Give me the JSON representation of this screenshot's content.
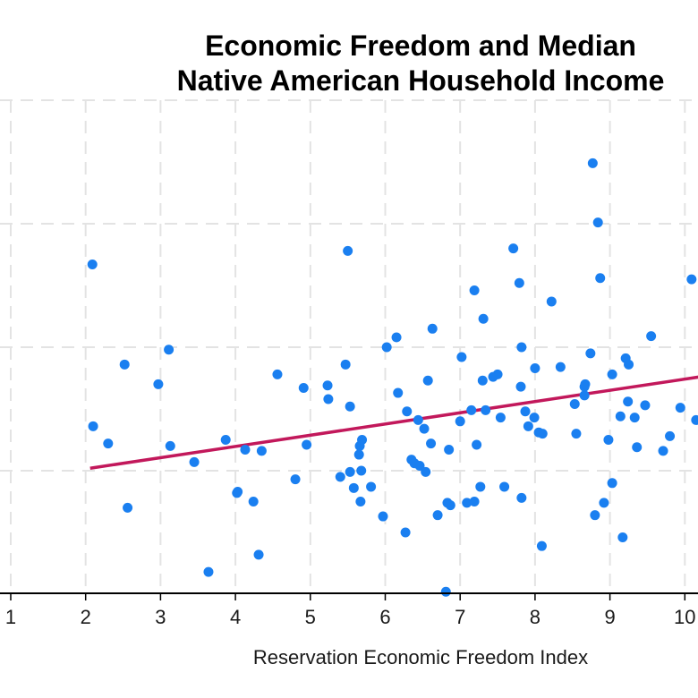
{
  "chart_data": {
    "type": "scatter",
    "title": [
      "Economic Freedom and Median",
      "Native American Household Income"
    ],
    "xlabel": "Reservation Economic Freedom Index",
    "ylabel": "",
    "xlim": [
      1,
      10.2
    ],
    "x_ticks": [
      1,
      2,
      3,
      4,
      5,
      6,
      7,
      8,
      9,
      10
    ],
    "y_note": "y-axis tick labels are cropped out of view; y values are expressed in gridline units (0 = lowest visible horizontal gridline, spacing 1)",
    "ylim": [
      -1.0,
      3.1
    ],
    "y_gridlines": [
      0,
      1,
      2,
      3
    ],
    "grid": true,
    "legend": "none",
    "colors": {
      "points": "#1a7ff0",
      "fit_line": "#c2185b",
      "grid": "#e3e3e3",
      "axis": "#000000"
    },
    "points": [
      [
        2.09,
        1.67
      ],
      [
        2.1,
        0.36
      ],
      [
        2.52,
        0.86
      ],
      [
        2.56,
        -0.3
      ],
      [
        2.3,
        0.22
      ],
      [
        2.97,
        0.7
      ],
      [
        3.11,
        0.98
      ],
      [
        3.13,
        0.2
      ],
      [
        3.45,
        0.07
      ],
      [
        3.64,
        -0.82
      ],
      [
        3.87,
        0.25
      ],
      [
        4.02,
        -0.18
      ],
      [
        4.03,
        -0.17
      ],
      [
        4.13,
        0.17
      ],
      [
        4.24,
        -0.25
      ],
      [
        4.31,
        -0.68
      ],
      [
        4.35,
        0.16
      ],
      [
        4.56,
        0.78
      ],
      [
        4.8,
        -0.07
      ],
      [
        4.91,
        0.67
      ],
      [
        4.95,
        0.21
      ],
      [
        5.23,
        0.69
      ],
      [
        5.24,
        0.58
      ],
      [
        5.4,
        -0.05
      ],
      [
        5.47,
        0.86
      ],
      [
        5.5,
        1.78
      ],
      [
        5.53,
        0.52
      ],
      [
        5.53,
        -0.01
      ],
      [
        5.58,
        -0.14
      ],
      [
        5.65,
        0.13
      ],
      [
        5.66,
        0.2
      ],
      [
        5.68,
        0.0
      ],
      [
        5.69,
        0.25
      ],
      [
        5.67,
        -0.25
      ],
      [
        5.81,
        -0.13
      ],
      [
        5.97,
        -0.37
      ],
      [
        6.02,
        1.0
      ],
      [
        6.15,
        1.08
      ],
      [
        6.17,
        0.63
      ],
      [
        6.27,
        -0.5
      ],
      [
        6.29,
        0.48
      ],
      [
        6.35,
        0.09
      ],
      [
        6.39,
        0.06
      ],
      [
        6.44,
        0.41
      ],
      [
        6.46,
        0.04
      ],
      [
        6.52,
        0.34
      ],
      [
        6.54,
        -0.01
      ],
      [
        6.57,
        0.73
      ],
      [
        6.61,
        0.22
      ],
      [
        6.63,
        1.15
      ],
      [
        6.7,
        -0.36
      ],
      [
        6.81,
        -0.98
      ],
      [
        6.83,
        -0.26
      ],
      [
        6.85,
        0.17
      ],
      [
        6.87,
        -0.28
      ],
      [
        7.0,
        0.4
      ],
      [
        7.02,
        0.92
      ],
      [
        7.09,
        -0.26
      ],
      [
        7.15,
        0.49
      ],
      [
        7.19,
        1.46
      ],
      [
        7.19,
        -0.25
      ],
      [
        7.22,
        0.21
      ],
      [
        7.27,
        -0.13
      ],
      [
        7.3,
        0.73
      ],
      [
        7.31,
        1.23
      ],
      [
        7.34,
        0.49
      ],
      [
        7.44,
        0.76
      ],
      [
        7.5,
        0.78
      ],
      [
        7.54,
        0.43
      ],
      [
        7.59,
        -0.13
      ],
      [
        7.71,
        1.8
      ],
      [
        7.79,
        1.52
      ],
      [
        7.81,
        0.68
      ],
      [
        7.82,
        1.0
      ],
      [
        7.82,
        -0.22
      ],
      [
        7.87,
        0.48
      ],
      [
        7.91,
        0.36
      ],
      [
        7.99,
        0.43
      ],
      [
        8.0,
        0.83
      ],
      [
        8.05,
        0.31
      ],
      [
        8.1,
        0.3
      ],
      [
        8.09,
        -0.61
      ],
      [
        8.22,
        1.37
      ],
      [
        8.34,
        0.84
      ],
      [
        8.53,
        0.54
      ],
      [
        8.55,
        0.3
      ],
      [
        8.66,
        0.61
      ],
      [
        8.66,
        0.68
      ],
      [
        8.67,
        0.7
      ],
      [
        8.74,
        0.95
      ],
      [
        8.77,
        2.49
      ],
      [
        8.8,
        -0.36
      ],
      [
        8.84,
        2.01
      ],
      [
        8.87,
        1.56
      ],
      [
        8.92,
        -0.26
      ],
      [
        8.98,
        0.25
      ],
      [
        9.03,
        -0.1
      ],
      [
        9.03,
        0.78
      ],
      [
        9.14,
        0.44
      ],
      [
        9.17,
        -0.54
      ],
      [
        9.21,
        0.91
      ],
      [
        9.24,
        0.56
      ],
      [
        9.25,
        0.86
      ],
      [
        9.33,
        0.43
      ],
      [
        9.36,
        0.19
      ],
      [
        9.47,
        0.53
      ],
      [
        9.55,
        1.09
      ],
      [
        9.71,
        0.16
      ],
      [
        9.8,
        0.28
      ],
      [
        9.94,
        0.51
      ],
      [
        10.09,
        1.55
      ],
      [
        10.15,
        0.41
      ]
    ],
    "fit_line": {
      "type": "linear",
      "x": [
        2.06,
        10.2
      ],
      "y": [
        0.02,
        0.76
      ]
    }
  }
}
